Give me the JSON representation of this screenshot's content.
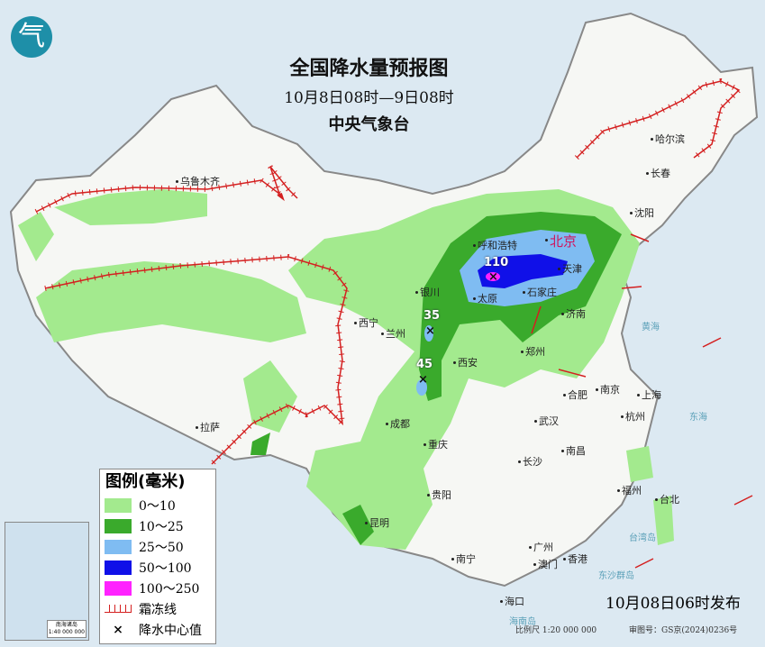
{
  "header": {
    "title": "全国降水量预报图",
    "period": "10月8日08时—9日08时",
    "agency": "中央气象台",
    "logo_icon": "cma-logo"
  },
  "legend": {
    "title": "图例(毫米)",
    "items": [
      {
        "label": "0～10",
        "color": "#a3ea8e"
      },
      {
        "label": "10～25",
        "color": "#3aaa2c"
      },
      {
        "label": "25～50",
        "color": "#7fbcf2"
      },
      {
        "label": "50～100",
        "color": "#1010e8"
      },
      {
        "label": "100～250",
        "color": "#ff22ff"
      }
    ],
    "frost_line": "霜冻线",
    "frost_color": "#d42020",
    "center_value": "降水中心值"
  },
  "centers": [
    "110",
    "35",
    "45"
  ],
  "cities": [
    "乌鲁木齐",
    "哈尔滨",
    "长春",
    "沈阳",
    "呼和浩特",
    "北京",
    "天津",
    "银川",
    "太原",
    "石家庄",
    "济南",
    "西宁",
    "兰州",
    "郑州",
    "西安",
    "合肥",
    "南京",
    "上海",
    "杭州",
    "武汉",
    "成都",
    "拉萨",
    "重庆",
    "长沙",
    "南昌",
    "贵阳",
    "福州",
    "台北",
    "昆明",
    "南宁",
    "广州",
    "澳门",
    "香港",
    "海口"
  ],
  "seas": [
    "黄海",
    "东海",
    "台湾岛",
    "东沙群岛",
    "海南岛"
  ],
  "inset": {
    "caption": "南海诸岛",
    "scale": "1:40 000 000"
  },
  "footer": {
    "issued": "10月08日06时发布",
    "scale": "比例尺 1:20 000 000",
    "review_no": "审图号：GS京(2024)0236号"
  }
}
